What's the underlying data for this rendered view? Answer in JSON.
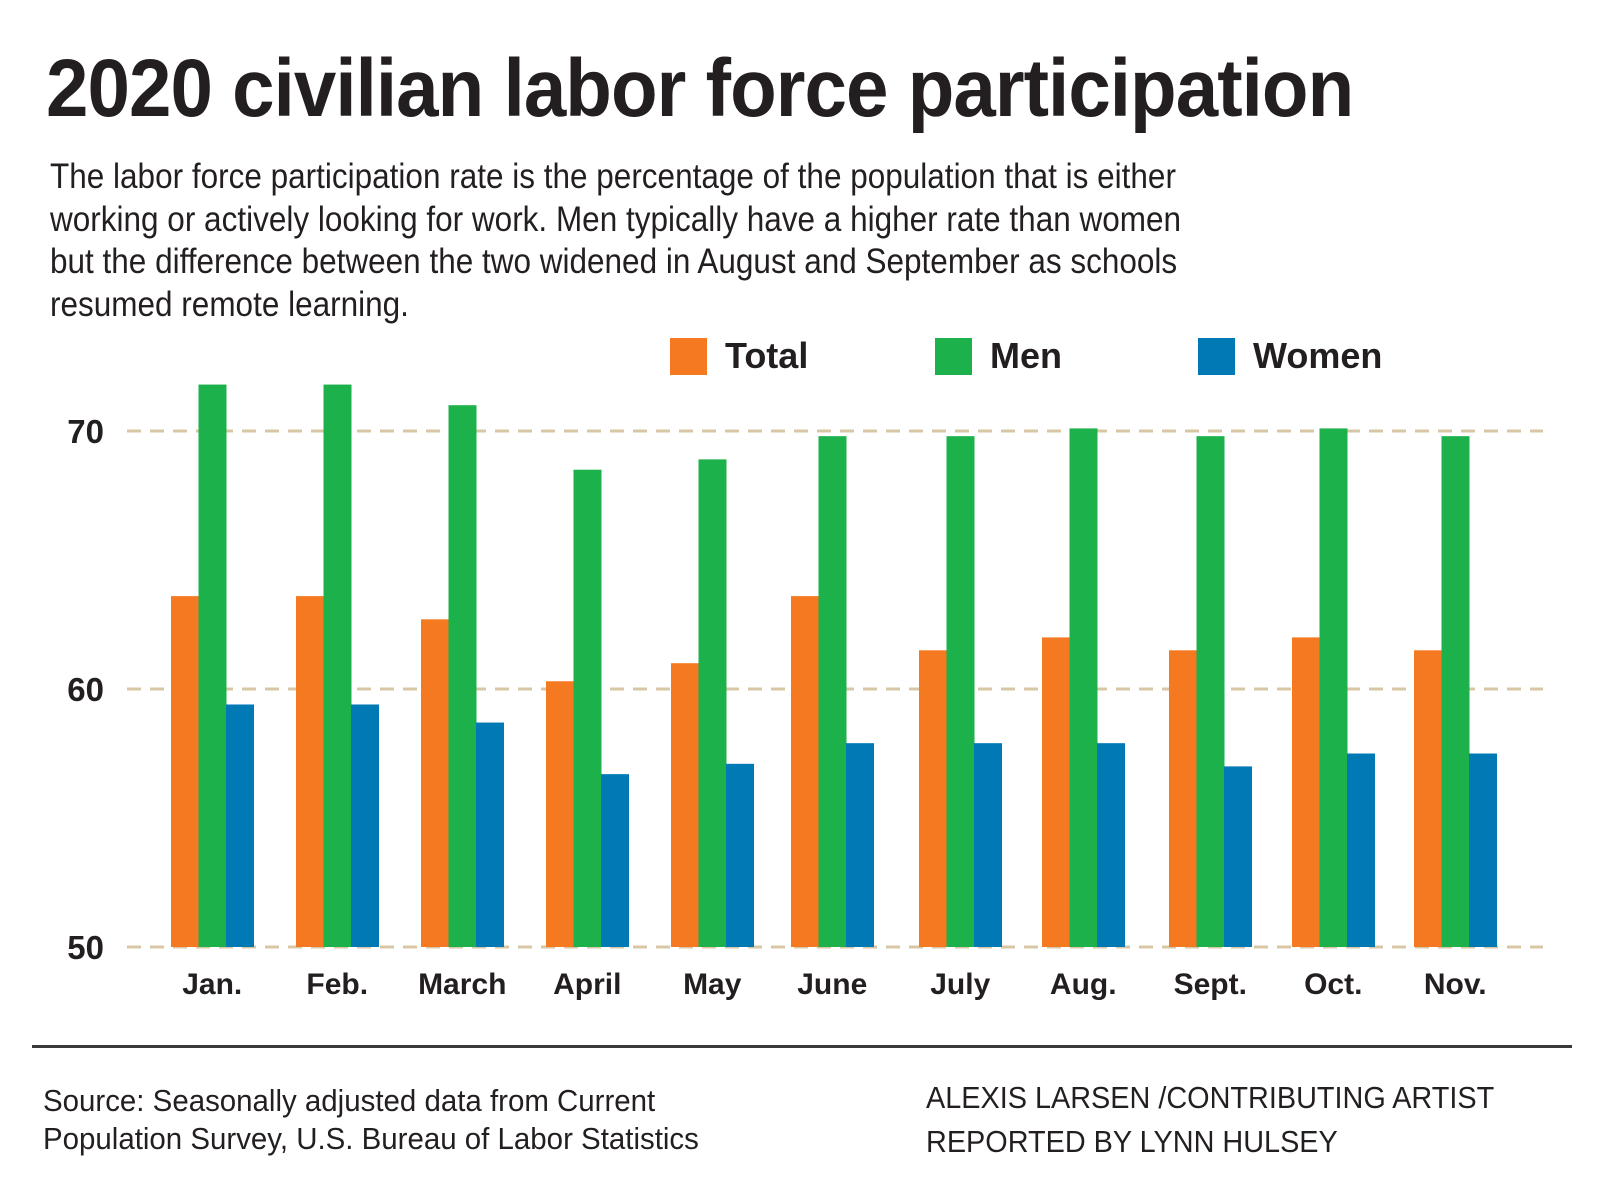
{
  "header": {
    "title": "2020 civilian labor force participation",
    "description_lines": [
      "The labor force participation rate is the percentage of the population that is either",
      "working or actively looking for work. Men typically have a higher rate than women",
      "but the difference between the two widened in August and September as schools",
      "resumed remote learning."
    ]
  },
  "legend": [
    {
      "label": "Total",
      "color": "#f47920"
    },
    {
      "label": "Men",
      "color": "#1db14b"
    },
    {
      "label": "Women",
      "color": "#0079b5"
    }
  ],
  "chart_data": {
    "type": "bar",
    "title": "2020 civilian labor force participation",
    "xlabel": "",
    "ylabel": "",
    "ylim": [
      50,
      72
    ],
    "yticks": [
      50,
      60,
      70
    ],
    "ytick_labels": [
      "50",
      "60",
      "70"
    ],
    "grid": "horizontal dashed",
    "legend_position": "top-right",
    "categories": [
      "Jan.",
      "Feb.",
      "March",
      "April",
      "May",
      "June",
      "July",
      "Aug.",
      "Sept.",
      "Oct.",
      "Nov."
    ],
    "series": [
      {
        "name": "Total",
        "color": "#f47920",
        "values": [
          63.6,
          63.6,
          62.7,
          60.3,
          61.0,
          63.6,
          61.5,
          62.0,
          61.5,
          62.0,
          61.5
        ]
      },
      {
        "name": "Men",
        "color": "#1db14b",
        "values": [
          71.8,
          71.8,
          71.0,
          68.5,
          68.9,
          69.8,
          69.8,
          70.1,
          69.8,
          70.1,
          69.8
        ]
      },
      {
        "name": "Women",
        "color": "#0079b5",
        "values": [
          59.4,
          59.4,
          58.7,
          56.7,
          57.1,
          57.9,
          57.9,
          57.9,
          57.0,
          57.5,
          57.5
        ]
      }
    ]
  },
  "footer": {
    "source_lines": [
      "Source: Seasonally adjusted data from Current",
      "Population Survey, U.S. Bureau of Labor Statistics"
    ],
    "credit_lines": [
      "ALEXIS LARSEN /CONTRIBUTING ARTIST",
      "REPORTED BY LYNN HULSEY"
    ]
  }
}
